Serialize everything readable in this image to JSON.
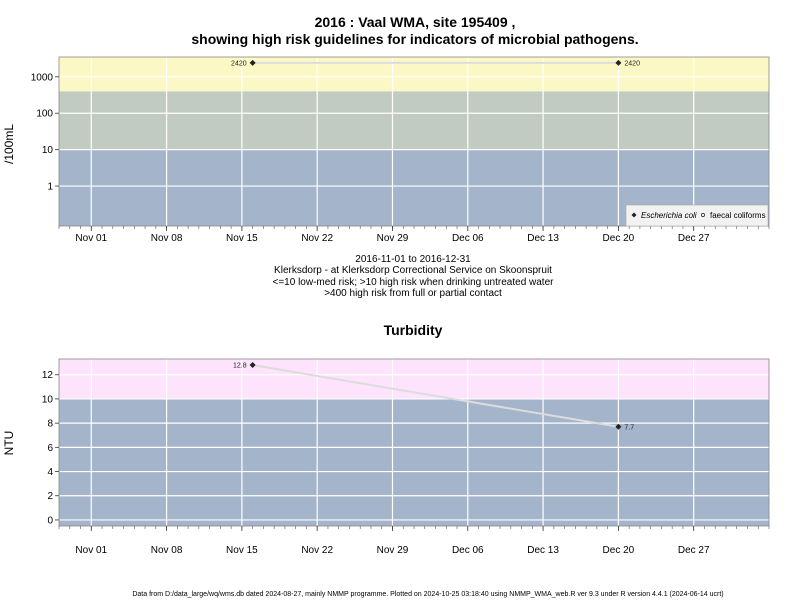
{
  "page": {
    "footer": "Data from D:/data_large/wq/wms.db dated 2024-08-27, mainly NMMP programme. Plotted on 2024-10-25 03:18:40 using NMMP_WMA_web.R ver 9.3 under R version 4.4.1 (2024-06-14 ucrt)"
  },
  "chart_data": [
    {
      "type": "line",
      "title_line1": "2016 : Vaal WMA, site 195409 ,",
      "title_line2": "showing high risk guidelines for indicators of microbial pathogens.",
      "ylabel": "/100mL",
      "y_scale": "log10",
      "ylim": [
        0.08,
        3500
      ],
      "xlim": [
        "2016-10-29",
        "2017-01-03"
      ],
      "x_ticks": [
        {
          "date": "2016-11-01",
          "label": "Nov 01"
        },
        {
          "date": "2016-11-08",
          "label": "Nov 08"
        },
        {
          "date": "2016-11-15",
          "label": "Nov 15"
        },
        {
          "date": "2016-11-22",
          "label": "Nov 22"
        },
        {
          "date": "2016-11-29",
          "label": "Nov 29"
        },
        {
          "date": "2016-12-06",
          "label": "Dec 06"
        },
        {
          "date": "2016-12-13",
          "label": "Dec 13"
        },
        {
          "date": "2016-12-20",
          "label": "Dec 20"
        },
        {
          "date": "2016-12-27",
          "label": "Dec 27"
        }
      ],
      "y_ticks": [
        {
          "value": 1,
          "label": "1"
        },
        {
          "value": 10,
          "label": "10"
        },
        {
          "value": 100,
          "label": "100"
        },
        {
          "value": 1000,
          "label": "1000"
        }
      ],
      "bands": [
        {
          "from": 0.08,
          "to": 10,
          "color": "#a3b4cb"
        },
        {
          "from": 10,
          "to": 400,
          "color": "#c2cbc2"
        },
        {
          "from": 400,
          "to": 3500,
          "color": "#fcf8c6"
        }
      ],
      "series": [
        {
          "name": "Escherichia coli",
          "marker": "diamond",
          "points": [
            {
              "date": "2016-11-16",
              "value": 2420,
              "label": "2420"
            },
            {
              "date": "2016-12-20",
              "value": 2420,
              "label": "2420"
            }
          ]
        },
        {
          "name": "faecal coliforms",
          "marker": "circle",
          "points": []
        }
      ],
      "legend_position": "bottom-right",
      "below_text": [
        "2016-11-01 to 2016-12-31",
        "Klerksdorp - at Klerksdorp Correctional Service on Skoonspruit",
        "<=10 low-med risk; >10 high risk when drinking untreated water",
        ">400 high risk from full or partial contact"
      ]
    },
    {
      "type": "line",
      "title": "Turbidity",
      "ylabel": "NTU",
      "ylim": [
        -0.5,
        13.3
      ],
      "xlim": [
        "2016-10-29",
        "2017-01-03"
      ],
      "x_ticks": [
        {
          "date": "2016-11-01",
          "label": "Nov 01"
        },
        {
          "date": "2016-11-08",
          "label": "Nov 08"
        },
        {
          "date": "2016-11-15",
          "label": "Nov 15"
        },
        {
          "date": "2016-11-22",
          "label": "Nov 22"
        },
        {
          "date": "2016-11-29",
          "label": "Nov 29"
        },
        {
          "date": "2016-12-06",
          "label": "Dec 06"
        },
        {
          "date": "2016-12-13",
          "label": "Dec 13"
        },
        {
          "date": "2016-12-20",
          "label": "Dec 20"
        },
        {
          "date": "2016-12-27",
          "label": "Dec 27"
        }
      ],
      "y_ticks": [
        {
          "value": 0,
          "label": "0"
        },
        {
          "value": 2,
          "label": "2"
        },
        {
          "value": 4,
          "label": "4"
        },
        {
          "value": 6,
          "label": "6"
        },
        {
          "value": 8,
          "label": "8"
        },
        {
          "value": 10,
          "label": "10"
        },
        {
          "value": 12,
          "label": "12"
        }
      ],
      "bands": [
        {
          "from": -0.5,
          "to": 10,
          "color": "#a3b4cb"
        },
        {
          "from": 10,
          "to": 13.3,
          "color": "#fde3fb"
        }
      ],
      "series": [
        {
          "marker": "diamond",
          "points": [
            {
              "date": "2016-11-16",
              "value": 12.8,
              "label": "12.8"
            },
            {
              "date": "2016-12-20",
              "value": 7.7,
              "label": "7.7"
            }
          ]
        }
      ]
    }
  ]
}
